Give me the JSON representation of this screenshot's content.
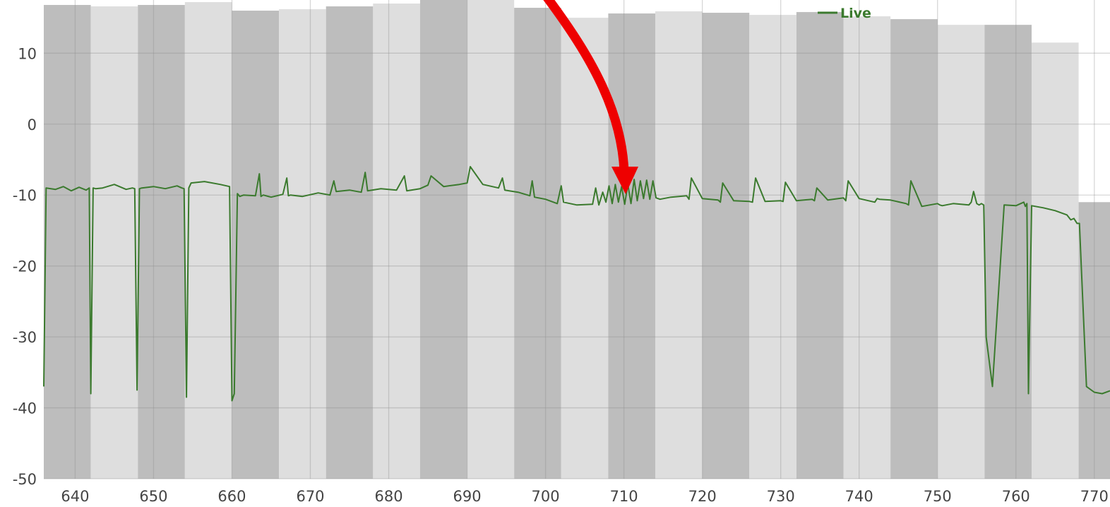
{
  "chart_data": {
    "type": "line",
    "title": "",
    "xlabel": "",
    "ylabel": "",
    "xlim": [
      636,
      772
    ],
    "ylim": [
      -50,
      17.5
    ],
    "x_ticks": [
      640,
      650,
      660,
      670,
      680,
      690,
      700,
      710,
      720,
      730,
      740,
      750,
      760,
      770
    ],
    "y_ticks": [
      10,
      0,
      -10,
      -20,
      -30,
      -40,
      -50
    ],
    "grid": true,
    "legend": {
      "placement": "top-right",
      "entries": [
        {
          "label": "Live",
          "color": "#3b7a2e"
        }
      ]
    },
    "band_shading": {
      "colors": [
        "#bdbdbd",
        "#dedede"
      ],
      "bands": [
        {
          "x0": 636,
          "x1": 642,
          "top": 16.8,
          "shade": 0
        },
        {
          "x0": 642,
          "x1": 648,
          "top": 16.6,
          "shade": 1
        },
        {
          "x0": 648,
          "x1": 654,
          "top": 16.8,
          "shade": 0
        },
        {
          "x0": 654,
          "x1": 660,
          "top": 17.2,
          "shade": 1
        },
        {
          "x0": 660,
          "x1": 666,
          "top": 16.0,
          "shade": 0
        },
        {
          "x0": 666,
          "x1": 672,
          "top": 16.2,
          "shade": 1
        },
        {
          "x0": 672,
          "x1": 678,
          "top": 16.6,
          "shade": 0
        },
        {
          "x0": 678,
          "x1": 684,
          "top": 17.0,
          "shade": 1
        },
        {
          "x0": 684,
          "x1": 690,
          "top": 17.5,
          "shade": 0
        },
        {
          "x0": 690,
          "x1": 696,
          "top": 17.8,
          "shade": 1
        },
        {
          "x0": 696,
          "x1": 702,
          "top": 16.4,
          "shade": 0
        },
        {
          "x0": 702,
          "x1": 708,
          "top": 15.0,
          "shade": 1
        },
        {
          "x0": 708,
          "x1": 714,
          "top": 15.6,
          "shade": 0
        },
        {
          "x0": 714,
          "x1": 720,
          "top": 15.9,
          "shade": 1
        },
        {
          "x0": 720,
          "x1": 726,
          "top": 15.7,
          "shade": 0
        },
        {
          "x0": 726,
          "x1": 732,
          "top": 15.4,
          "shade": 1
        },
        {
          "x0": 732,
          "x1": 738,
          "top": 15.8,
          "shade": 0
        },
        {
          "x0": 738,
          "x1": 744,
          "top": 15.2,
          "shade": 1
        },
        {
          "x0": 744,
          "x1": 750,
          "top": 14.8,
          "shade": 0
        },
        {
          "x0": 750,
          "x1": 756,
          "top": 14.0,
          "shade": 1
        },
        {
          "x0": 756,
          "x1": 762,
          "top": 14.0,
          "shade": 0
        },
        {
          "x0": 762,
          "x1": 768,
          "top": 11.5,
          "shade": 1
        },
        {
          "x0": 768,
          "x1": 772,
          "top": -11.0,
          "shade": 0
        }
      ]
    },
    "series": [
      {
        "name": "Live",
        "color": "#3b7a2e",
        "x": [
          636.0,
          636.3,
          637.5,
          638.5,
          639.5,
          640.5,
          641.4,
          641.8,
          642.0,
          642.3,
          642.6,
          643.5,
          645.0,
          646.5,
          647.3,
          647.6,
          647.9,
          648.2,
          648.5,
          650.0,
          651.5,
          653.0,
          653.6,
          653.9,
          654.2,
          654.5,
          654.8,
          656.5,
          658.5,
          659.7,
          660.0,
          660.3,
          660.7,
          661.0,
          661.5,
          663.0,
          663.5,
          663.7,
          664.0,
          665.0,
          666.5,
          667.0,
          667.2,
          667.5,
          669.0,
          671.0,
          672.5,
          673.0,
          673.3,
          675.0,
          676.5,
          677.0,
          677.3,
          679.0,
          681.0,
          682.0,
          682.3,
          684.0,
          685.0,
          685.4,
          687.0,
          689.0,
          690.0,
          690.4,
          692.0,
          694.0,
          694.5,
          694.8,
          696.5,
          698.0,
          698.3,
          698.6,
          700.0,
          701.5,
          702.0,
          702.3,
          704.0,
          706.0,
          706.4,
          706.8,
          707.3,
          707.7,
          708.1,
          708.5,
          708.9,
          709.3,
          709.7,
          710.1,
          710.5,
          710.9,
          711.3,
          711.7,
          712.1,
          712.5,
          712.9,
          713.3,
          713.7,
          714.1,
          714.6,
          716.0,
          718.0,
          718.3,
          718.6,
          720.0,
          722.0,
          722.3,
          722.6,
          724.0,
          726.0,
          726.4,
          726.8,
          728.0,
          730.0,
          730.3,
          730.6,
          732.0,
          734.0,
          734.3,
          734.6,
          736.0,
          738.0,
          738.3,
          738.6,
          740.0,
          742.0,
          742.3,
          742.6,
          744.0,
          746.0,
          746.3,
          746.6,
          748.0,
          750.0,
          750.3,
          750.6,
          752.0,
          754.0,
          754.3,
          754.6,
          755.0,
          755.3,
          755.6,
          755.9,
          756.2,
          757.0,
          758.5,
          760.0,
          761.0,
          761.2,
          761.4,
          761.6,
          762.0,
          763.5,
          765.0,
          766.5,
          767.0,
          767.4,
          767.8,
          768.1,
          769.0,
          770.0,
          771.0,
          772.0
        ],
        "y": [
          -37.0,
          -9.0,
          -9.2,
          -8.8,
          -9.4,
          -8.9,
          -9.3,
          -9.0,
          -38.0,
          -9.0,
          -9.1,
          -9.0,
          -8.5,
          -9.2,
          -9.0,
          -9.1,
          -37.5,
          -9.1,
          -9.0,
          -8.8,
          -9.1,
          -8.7,
          -9.0,
          -9.1,
          -38.5,
          -9.0,
          -8.3,
          -8.1,
          -8.5,
          -8.8,
          -39.0,
          -38.0,
          -9.8,
          -10.2,
          -10.0,
          -10.1,
          -7.0,
          -10.2,
          -10.0,
          -10.3,
          -9.9,
          -7.6,
          -10.1,
          -10.0,
          -10.2,
          -9.7,
          -10.0,
          -8.0,
          -9.5,
          -9.3,
          -9.6,
          -6.8,
          -9.4,
          -9.1,
          -9.3,
          -7.3,
          -9.4,
          -9.1,
          -8.6,
          -7.3,
          -8.8,
          -8.5,
          -8.3,
          -6.0,
          -8.5,
          -9.0,
          -7.6,
          -9.3,
          -9.6,
          -10.1,
          -8.0,
          -10.3,
          -10.6,
          -11.2,
          -8.7,
          -11.0,
          -11.4,
          -11.3,
          -9.0,
          -11.4,
          -9.6,
          -11.0,
          -8.7,
          -11.2,
          -8.5,
          -11.0,
          -8.8,
          -11.3,
          -8.5,
          -11.2,
          -7.8,
          -10.8,
          -8.0,
          -10.5,
          -7.9,
          -10.6,
          -8.0,
          -10.4,
          -10.6,
          -10.3,
          -10.1,
          -10.6,
          -7.6,
          -10.5,
          -10.7,
          -11.0,
          -8.3,
          -10.8,
          -10.9,
          -11.0,
          -7.6,
          -10.9,
          -10.8,
          -10.9,
          -8.2,
          -10.8,
          -10.6,
          -10.8,
          -9.0,
          -10.7,
          -10.4,
          -10.8,
          -8.0,
          -10.5,
          -11.0,
          -10.5,
          -10.6,
          -10.7,
          -11.2,
          -11.4,
          -8.0,
          -11.6,
          -11.2,
          -11.4,
          -11.5,
          -11.2,
          -11.4,
          -11.0,
          -9.5,
          -11.2,
          -11.4,
          -11.2,
          -11.4,
          -30.0,
          -37.0,
          -11.4,
          -11.5,
          -11.0,
          -11.6,
          -11.2,
          -38.0,
          -11.5,
          -11.8,
          -12.2,
          -12.8,
          -13.5,
          -13.3,
          -14.0,
          -14.0,
          -37.0,
          -37.8,
          -38.0,
          -37.6
        ]
      }
    ]
  }
}
